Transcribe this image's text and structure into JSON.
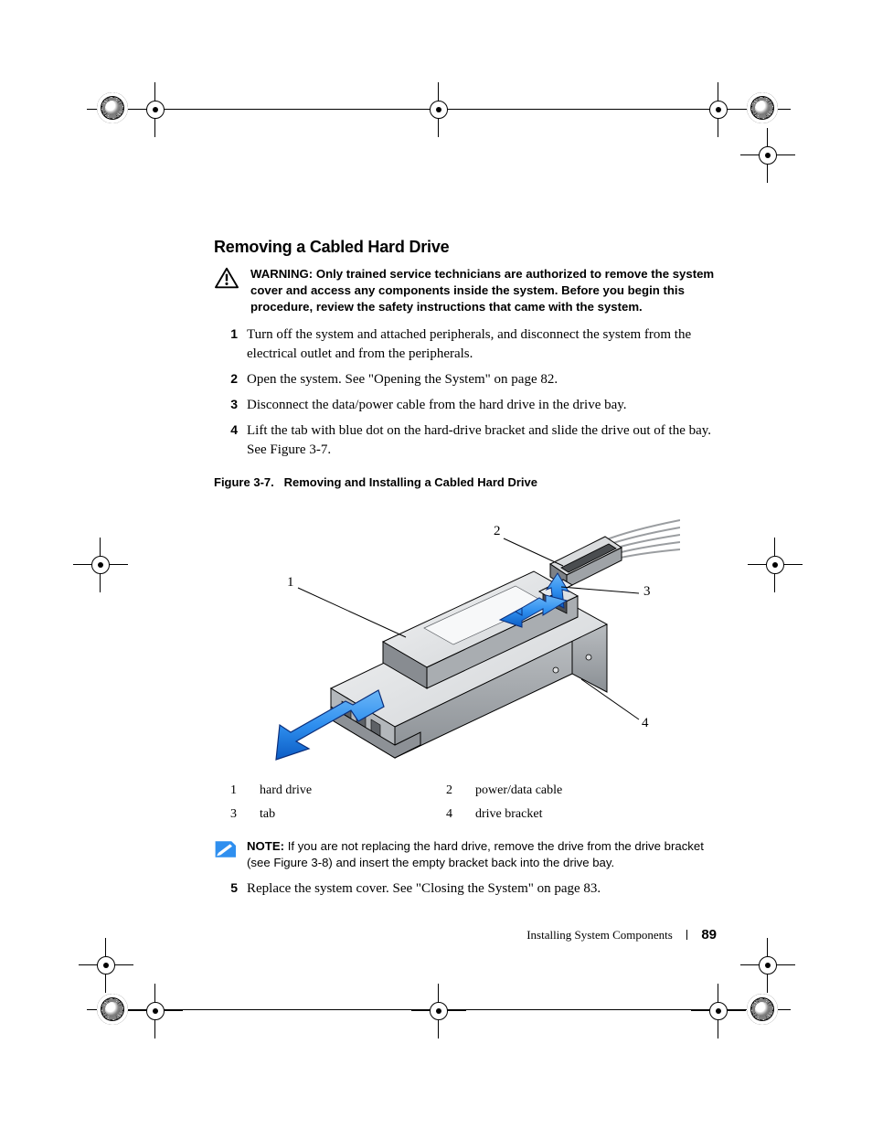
{
  "heading": "Removing a Cabled Hard Drive",
  "warning": {
    "lead": "WARNING:",
    "body": "Only trained service technicians are authorized to remove the system cover and access any components inside the system. Before you begin this procedure, review the safety instructions that came with the system."
  },
  "steps_a": [
    "Turn off the system and attached peripherals, and disconnect the system from the electrical outlet and from the peripherals.",
    "Open the system. See \"Opening the System\" on page 82.",
    "Disconnect the data/power cable from the hard drive in the drive bay.",
    "Lift the tab with blue dot on the hard-drive bracket and slide the drive out of the bay. See Figure 3-7."
  ],
  "figure": {
    "caption_label": "Figure 3-7.",
    "caption_text": "Removing and Installing a Cabled Hard Drive",
    "callouts": {
      "c1": "1",
      "c2": "2",
      "c3": "3",
      "c4": "4"
    },
    "legend": [
      {
        "n": "1",
        "t": "hard drive"
      },
      {
        "n": "2",
        "t": "power/data cable"
      },
      {
        "n": "3",
        "t": "tab"
      },
      {
        "n": "4",
        "t": "drive bracket"
      }
    ],
    "colors": {
      "arrow_fill": "#2f8fef",
      "arrow_edge": "#0b2e7a",
      "metal_light": "#e6e8ea",
      "metal_mid": "#b8bcc0",
      "metal_dark": "#7a7f85",
      "outline": "#000000",
      "cable_gray": "#c8cacc"
    }
  },
  "note": {
    "lead": "NOTE:",
    "body": "If you are not replacing the hard drive, remove the drive from the drive bracket (see Figure 3-8) and insert the empty bracket back into the drive bay."
  },
  "steps_b_start": 5,
  "steps_b": [
    "Replace the system cover. See \"Closing the System\" on page 83."
  ],
  "footer": {
    "section": "Installing System Components",
    "page": "89"
  }
}
